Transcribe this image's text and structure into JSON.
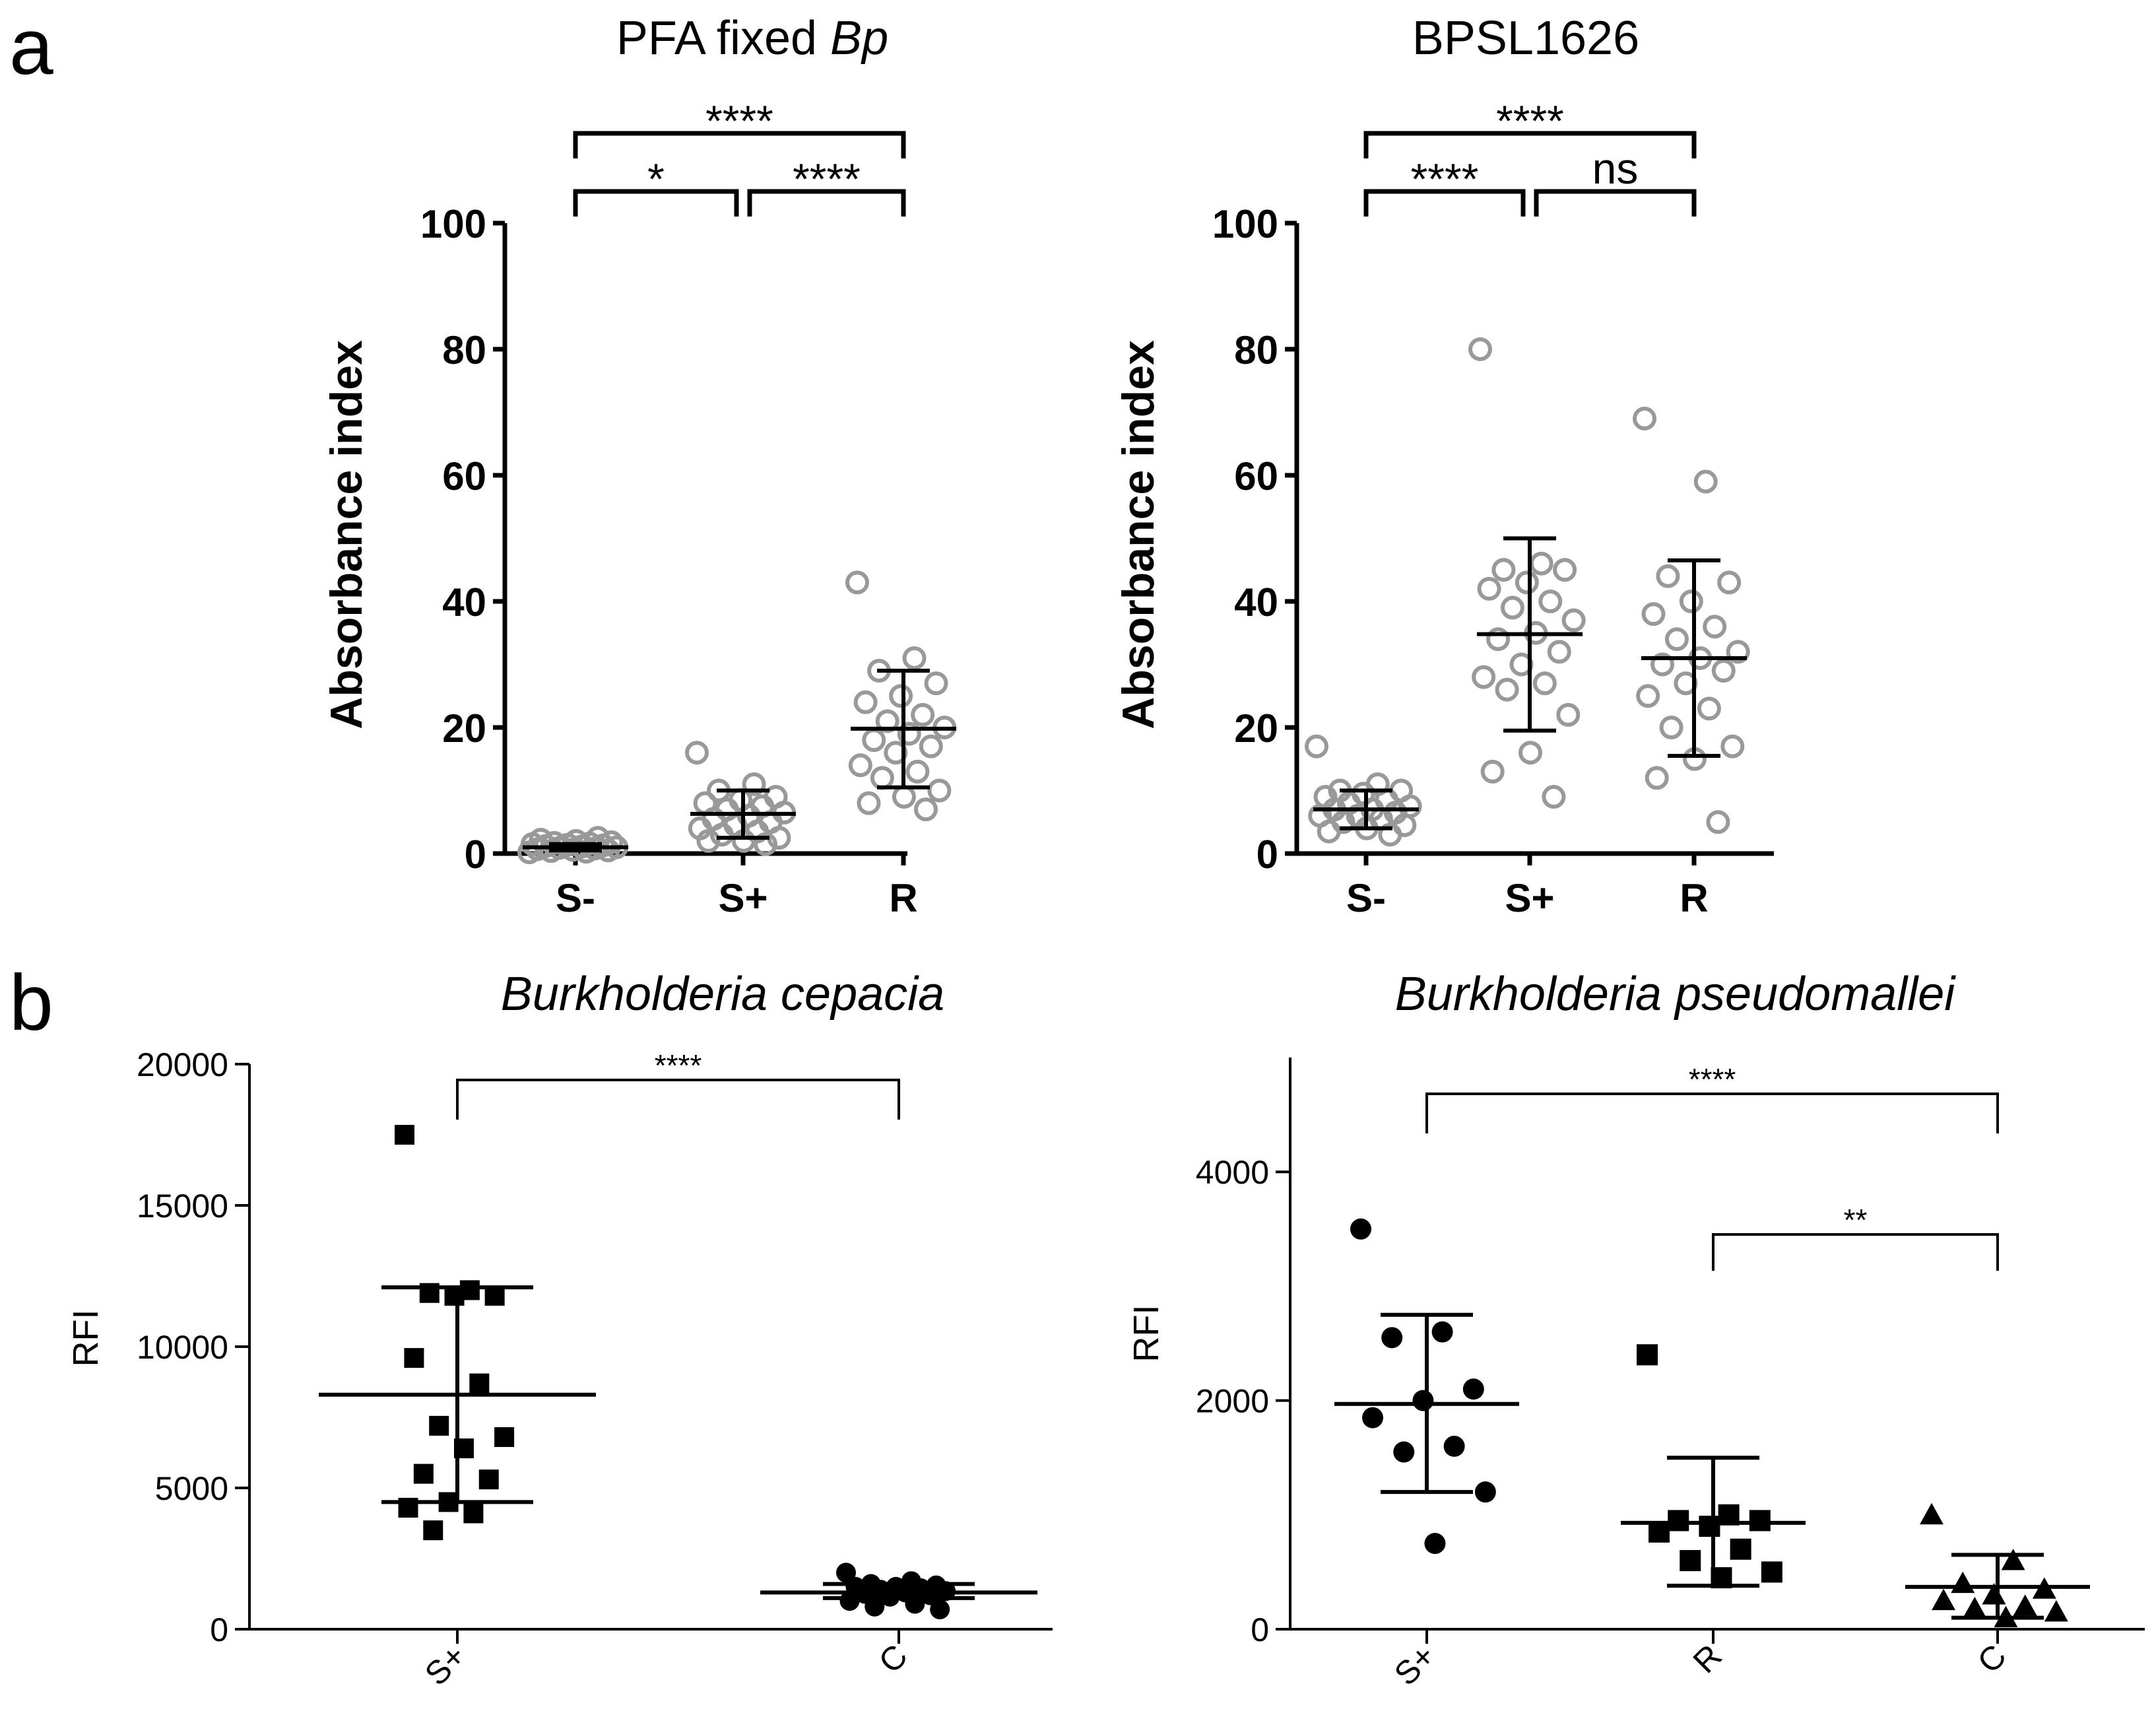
{
  "figure": {
    "panel_a_letter": "a",
    "panel_b_letter": "b"
  },
  "colors": {
    "axis": "#000000",
    "open_marker": "#999999",
    "filled_marker": "#000000",
    "background": "#ffffff"
  },
  "chart_data": [
    {
      "panel": "a",
      "type": "scatter",
      "marker": "open-circle",
      "title_parts": [
        "PFA fixed ",
        "Bp"
      ],
      "ylabel": "Absorbance index",
      "ylim": [
        0,
        100
      ],
      "yticks": [
        "0",
        "20",
        "40",
        "60",
        "80",
        "100"
      ],
      "categories": [
        "S-",
        "S+",
        "R"
      ],
      "series": [
        {
          "name": "S-",
          "values": [
            0.2,
            0.3,
            0.4,
            0.5,
            0.6,
            0.7,
            0.8,
            0.9,
            1.0,
            1.1,
            1.2,
            1.3,
            1.4,
            1.5,
            1.6,
            1.7,
            1.8,
            2.0,
            2.2,
            2.5
          ],
          "mean": 1.0,
          "sd_low": 0.5,
          "sd_high": 1.5
        },
        {
          "name": "S+",
          "values": [
            16,
            11,
            10,
            9,
            8.5,
            8,
            7.5,
            7,
            6.5,
            6,
            5.5,
            5,
            4.5,
            4,
            3.5,
            3,
            2.5,
            2,
            2,
            1.5
          ],
          "mean": 6.3,
          "sd_low": 2.5,
          "sd_high": 10
        },
        {
          "name": "R",
          "values": [
            43,
            31,
            29,
            27,
            25,
            24,
            22,
            21,
            20,
            19,
            18,
            17,
            16,
            14,
            13,
            12,
            10,
            9,
            8,
            7
          ],
          "mean": 19.8,
          "sd_low": 10.5,
          "sd_high": 29
        }
      ],
      "comparisons": [
        {
          "from": "S-",
          "to": "R",
          "label": "****"
        },
        {
          "from": "S-",
          "to": "S+",
          "label": "*"
        },
        {
          "from": "S+",
          "to": "R",
          "label": "****"
        }
      ]
    },
    {
      "panel": "a",
      "type": "scatter",
      "marker": "open-circle",
      "title_parts": [
        "BPSL1626"
      ],
      "ylabel": "Absorbance index",
      "ylim": [
        0,
        100
      ],
      "yticks": [
        "0",
        "20",
        "40",
        "60",
        "80",
        "100"
      ],
      "categories": [
        "S-",
        "S+",
        "R"
      ],
      "series": [
        {
          "name": "S-",
          "values": [
            17,
            11,
            10,
            10,
            9.5,
            9,
            8.5,
            8,
            7.5,
            7,
            7,
            6.5,
            6,
            6,
            5.5,
            5,
            4.5,
            4,
            3.5,
            3
          ],
          "mean": 7.0,
          "sd_low": 4,
          "sd_high": 10
        },
        {
          "name": "S+",
          "values": [
            80,
            46,
            45,
            45,
            43,
            42,
            40,
            39,
            37,
            35,
            34,
            32,
            30,
            28,
            27,
            26,
            22,
            16,
            13,
            9
          ],
          "mean": 34.8,
          "sd_low": 19.5,
          "sd_high": 50
        },
        {
          "name": "R",
          "values": [
            69,
            59,
            44,
            43,
            40,
            38,
            36,
            34,
            32,
            31,
            30,
            29,
            27,
            25,
            23,
            20,
            17,
            15,
            12,
            5
          ],
          "mean": 31.0,
          "sd_low": 15.5,
          "sd_high": 46.5
        }
      ],
      "comparisons": [
        {
          "from": "S-",
          "to": "R",
          "label": "****"
        },
        {
          "from": "S-",
          "to": "S+",
          "label": "****"
        },
        {
          "from": "S+",
          "to": "R",
          "label": "ns"
        }
      ]
    },
    {
      "panel": "b",
      "type": "scatter",
      "title_parts": [
        "Burkholderia cepacia"
      ],
      "ylabel": "RFI",
      "ylim": [
        0,
        20000
      ],
      "yticks": [
        "0",
        "5000",
        "10000",
        "15000",
        "20000"
      ],
      "categories": [
        "S+",
        "C"
      ],
      "series": [
        {
          "name": "S+",
          "marker": "square",
          "values": [
            17500,
            12000,
            11900,
            11800,
            11800,
            9600,
            8700,
            7200,
            6800,
            6400,
            5500,
            5300,
            4500,
            4300,
            4100,
            3500
          ],
          "mean": 8300,
          "sd_low": 4500,
          "sd_high": 12100
        },
        {
          "name": "C",
          "marker": "circle",
          "values": [
            2000,
            1700,
            1600,
            1550,
            1500,
            1500,
            1450,
            1400,
            1350,
            1300,
            1250,
            1200,
            1150,
            1000,
            900,
            800,
            700
          ],
          "mean": 1300,
          "sd_low": 1100,
          "sd_high": 1600
        }
      ],
      "comparisons": [
        {
          "from": "S+",
          "to": "C",
          "label": "****"
        }
      ]
    },
    {
      "panel": "b",
      "type": "scatter",
      "title_parts": [
        "Burkholderia pseudomallei"
      ],
      "ylabel": "RFI",
      "ylim": [
        0,
        5000
      ],
      "yticks": [
        "0",
        "2000",
        "4000"
      ],
      "categories": [
        "S+",
        "R",
        "C"
      ],
      "series": [
        {
          "name": "S+",
          "marker": "circle",
          "values": [
            3500,
            2600,
            2550,
            2100,
            2000,
            1850,
            1600,
            1550,
            1200,
            750
          ],
          "mean": 1970,
          "sd_low": 1200,
          "sd_high": 2750
        },
        {
          "name": "R",
          "marker": "square",
          "values": [
            2400,
            1000,
            950,
            950,
            900,
            850,
            700,
            600,
            500,
            450
          ],
          "mean": 930,
          "sd_low": 380,
          "sd_high": 1500
        },
        {
          "name": "C",
          "marker": "triangle",
          "values": [
            1000,
            600,
            400,
            350,
            300,
            250,
            200,
            180,
            150,
            100
          ],
          "mean": 370,
          "sd_low": 100,
          "sd_high": 650
        }
      ],
      "comparisons": [
        {
          "from": "S+",
          "to": "C",
          "label": "****"
        },
        {
          "from": "R",
          "to": "C",
          "label": "**"
        }
      ]
    }
  ]
}
